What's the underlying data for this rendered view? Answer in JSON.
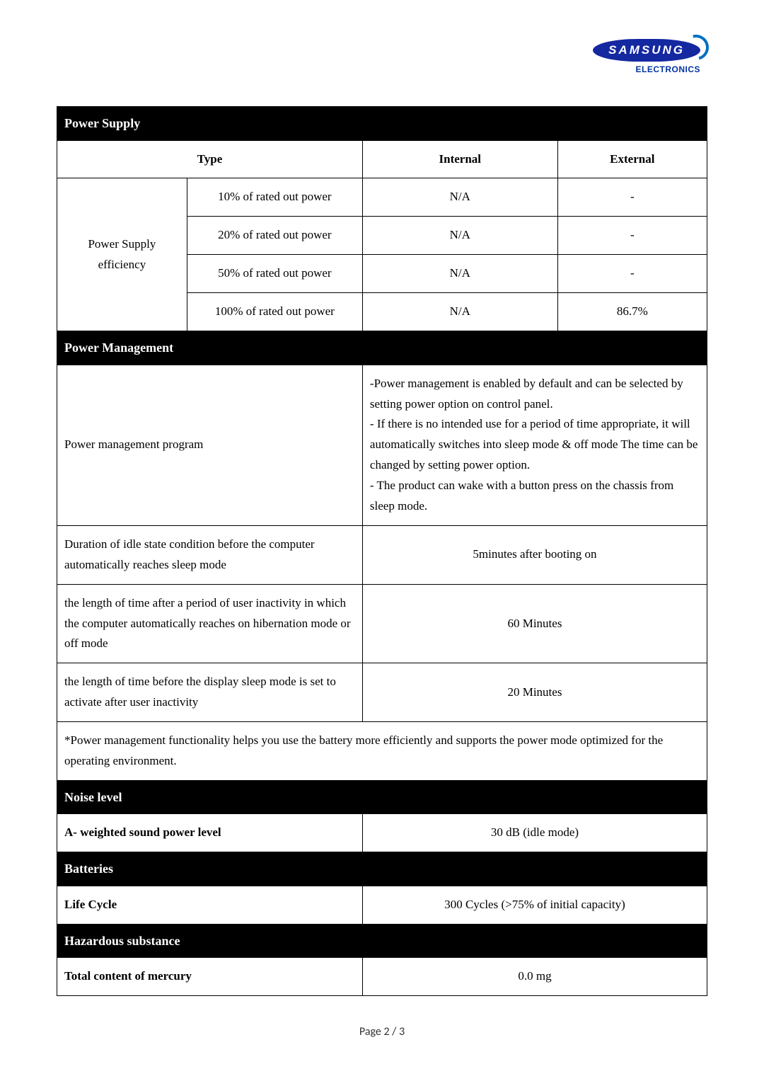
{
  "logo": {
    "brand": "SAMSUNG",
    "subtitle": "ELECTRONICS",
    "brand_bg": "#1428a0",
    "brand_fg": "#ffffff",
    "subtitle_color": "#0033a0",
    "swoosh_color": "#0070c0"
  },
  "sections": {
    "power_supply": {
      "title": "Power Supply",
      "header": {
        "type": "Type",
        "internal": "Internal",
        "external": "External"
      },
      "group_label": "Power Supply efficiency",
      "rows": [
        {
          "label": "10% of rated out power",
          "internal": "N/A",
          "external": "-"
        },
        {
          "label": "20% of rated out power",
          "internal": "N/A",
          "external": "-"
        },
        {
          "label": "50% of rated out power",
          "internal": "N/A",
          "external": "-"
        },
        {
          "label": "100% of rated out power",
          "internal": "N/A",
          "external": "86.7%"
        }
      ]
    },
    "power_management": {
      "title": "Power Management",
      "program_label": "Power management program",
      "program_text": "-Power management is enabled by default and can be selected by setting power option on control panel.\n- If there is no intended use for a period of time appropriate, it will automatically switches into sleep mode & off mode The time can be changed by setting power option.\n- The product can wake with a button press on the chassis from sleep mode.",
      "rows": [
        {
          "label": "Duration of idle state condition before the computer automatically reaches sleep mode",
          "value": "5minutes after booting on"
        },
        {
          "label": "the length of time after a period of user inactivity in which the computer automatically reaches on hibernation mode or off mode",
          "value": "60 Minutes"
        },
        {
          "label": "the length of time before the display sleep mode is set to activate after user inactivity",
          "value": "20 Minutes"
        }
      ],
      "footnote": "*Power management functionality helps you use the battery more efficiently and supports the power mode optimized for the operating environment."
    },
    "noise": {
      "title": "Noise level",
      "label": "A- weighted sound power level",
      "value": "30 dB (idle mode)"
    },
    "batteries": {
      "title": "Batteries",
      "label": "Life Cycle",
      "value": "300 Cycles (>75% of initial capacity)"
    },
    "hazardous": {
      "title": "Hazardous substance",
      "label": "Total content of mercury",
      "value": "0.0 mg"
    }
  },
  "page_number": "Page 2 / 3",
  "styling": {
    "page_bg": "#ffffff",
    "border_color": "#000000",
    "section_header_bg": "#000000",
    "section_header_fg": "#ffffff",
    "body_font": "Times New Roman",
    "body_font_size_pt": 13,
    "header_font_size_pt": 14,
    "line_height": 1.7
  }
}
